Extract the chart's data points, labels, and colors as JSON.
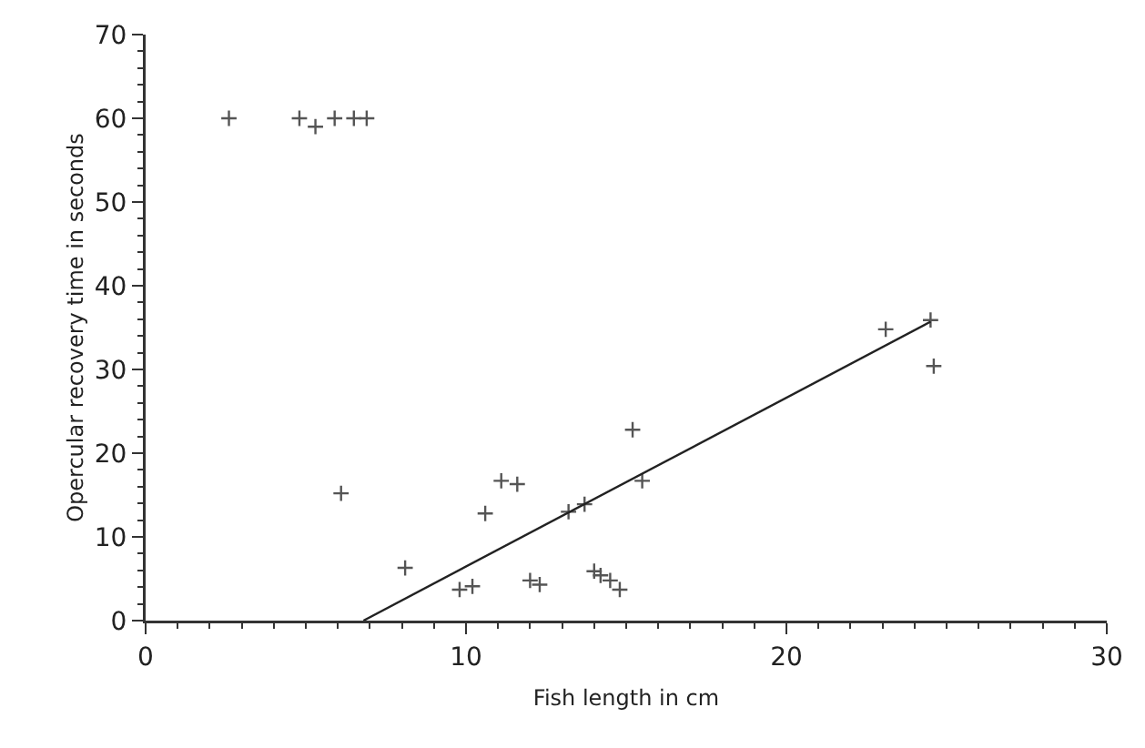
{
  "chart_data": {
    "type": "scatter",
    "xlabel": "Fish length in cm",
    "ylabel": "Opercular recovery time in seconds",
    "xlim": [
      0,
      30
    ],
    "ylim": [
      0,
      70
    ],
    "xticks": [
      0,
      10,
      20,
      30
    ],
    "yticks": [
      0,
      10,
      20,
      30,
      40,
      50,
      60,
      70
    ],
    "grid": false,
    "marker": "cross",
    "series": [
      {
        "color": "#555555",
        "x": [
          2.6,
          4.8,
          5.3,
          5.9,
          6.5,
          6.9,
          6.1,
          8.1,
          9.8,
          10.2,
          10.6,
          11.1,
          11.6,
          12.0,
          12.3,
          13.2,
          13.7,
          14.0,
          14.2,
          14.5,
          14.8,
          15.2,
          15.5,
          23.1,
          24.5,
          24.6
        ],
        "values": [
          60,
          60,
          59,
          60,
          60,
          60,
          15.2,
          6.3,
          3.7,
          4.1,
          12.8,
          16.7,
          16.3,
          4.8,
          4.3,
          13.0,
          13.9,
          5.9,
          5.4,
          4.8,
          3.7,
          22.8,
          16.7,
          34.8,
          35.9,
          30.4
        ]
      },
      {
        "type": "line",
        "color": "#222222",
        "marker": "none",
        "x": [
          6.8,
          24.5
        ],
        "values": [
          0,
          35.7
        ]
      }
    ]
  }
}
